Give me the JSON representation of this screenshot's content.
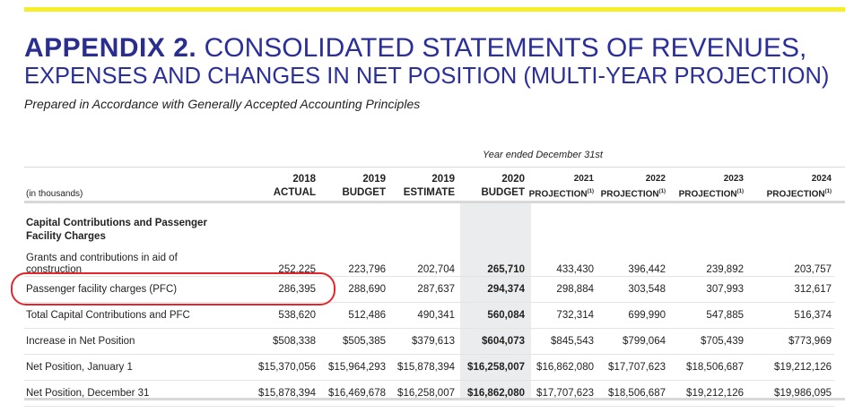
{
  "header": {
    "title_bold": "APPENDIX 2.",
    "title_line1": "CONSOLIDATED STATEMENTS OF REVENUES,",
    "title_line2": "EXPENSES AND CHANGES IN NET POSITION (MULTI-YEAR PROJECTION)",
    "subtitle": "Prepared in Accordance with Generally Accepted Accounting Principles",
    "accent_color": "#f7ee2a",
    "title_color": "#2b2f9a"
  },
  "table": {
    "year_header": "Year ended December 31st",
    "units_label": "(in thousands)",
    "footnote_mark": "(1)",
    "columns": [
      {
        "year": "2018",
        "type": "ACTUAL"
      },
      {
        "year": "2019",
        "type": "BUDGET"
      },
      {
        "year": "2019",
        "type": "ESTIMATE"
      },
      {
        "year": "2020",
        "type": "BUDGET"
      },
      {
        "year": "2021",
        "type": "PROJECTION"
      },
      {
        "year": "2022",
        "type": "PROJECTION"
      },
      {
        "year": "2023",
        "type": "PROJECTION"
      },
      {
        "year": "2024",
        "type": "PROJECTION"
      }
    ],
    "section_header": "Capital Contributions and Passenger Facility Charges",
    "rows": [
      {
        "label": "Grants and contributions in aid of construction",
        "values": [
          "252,225",
          "223,796",
          "202,704",
          "265,710",
          "433,430",
          "396,442",
          "239,892",
          "203,757"
        ]
      },
      {
        "label": "Passenger facility charges (PFC)",
        "values": [
          "286,395",
          "288,690",
          "287,637",
          "294,374",
          "298,884",
          "303,548",
          "307,993",
          "312,617"
        ]
      },
      {
        "label": "Total Capital Contributions and PFC",
        "values": [
          "538,620",
          "512,486",
          "490,341",
          "560,084",
          "732,314",
          "699,990",
          "547,885",
          "516,374"
        ]
      },
      {
        "label": "Increase in Net Position",
        "values": [
          "$508,338",
          "$505,385",
          "$379,613",
          "$604,073",
          "$845,543",
          "$799,064",
          "$705,439",
          "$773,969"
        ]
      },
      {
        "label": "Net Position, January 1",
        "values": [
          "$15,370,056",
          "$15,964,293",
          "$15,878,394",
          "$16,258,007",
          "$16,862,080",
          "$17,707,623",
          "$18,506,687",
          "$19,212,126"
        ]
      },
      {
        "label": "Net Position, December 31",
        "values": [
          "$15,878,394",
          "$16,469,678",
          "$16,258,007",
          "$16,862,080",
          "$17,707,623",
          "$18,506,687",
          "$19,212,126",
          "$19,986,095"
        ]
      }
    ],
    "highlight_color": "#e3262b"
  }
}
